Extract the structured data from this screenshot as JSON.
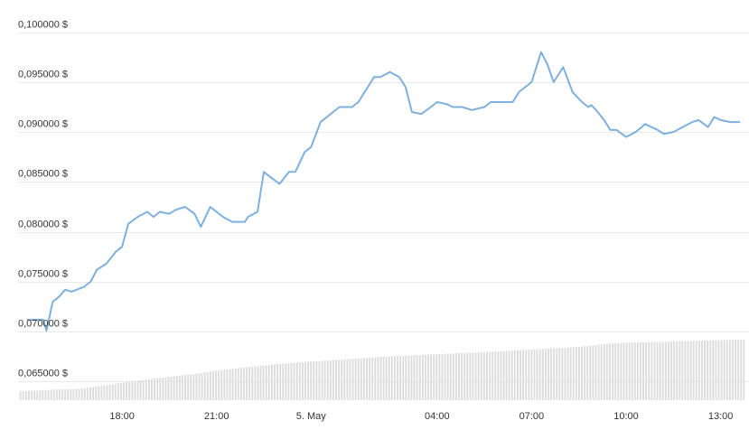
{
  "chart_data": {
    "type": "line",
    "y_ticks": [
      {
        "value": 0.1,
        "label": "0,100000 $"
      },
      {
        "value": 0.095,
        "label": "0,095000 $"
      },
      {
        "value": 0.09,
        "label": "0,090000 $"
      },
      {
        "value": 0.085,
        "label": "0,085000 $"
      },
      {
        "value": 0.08,
        "label": "0,080000 $"
      },
      {
        "value": 0.075,
        "label": "0,075000 $"
      },
      {
        "value": 0.07,
        "label": "0,070000 $"
      },
      {
        "value": 0.065,
        "label": "0,065000 $"
      }
    ],
    "ylim": [
      0.0625,
      0.1025
    ],
    "xlim": [
      14.7,
      37.9
    ],
    "x_ticks": [
      {
        "value": 18,
        "label": "18:00"
      },
      {
        "value": 21,
        "label": "21:00"
      },
      {
        "value": 24,
        "label": "5. May"
      },
      {
        "value": 28,
        "label": "04:00"
      },
      {
        "value": 31,
        "label": "07:00"
      },
      {
        "value": 34,
        "label": "10:00"
      },
      {
        "value": 37,
        "label": "13:00"
      }
    ],
    "grid": true,
    "colors": {
      "line": "#7eb0dd",
      "volume": "#dcdcdc",
      "grid": "#e9e9e9",
      "text": "#333333"
    },
    "series": [
      {
        "x": [
          15.0,
          15.5,
          15.6,
          15.8,
          16.0,
          16.2,
          16.4,
          16.8,
          17.0,
          17.2,
          17.5,
          17.8,
          18.0,
          18.2,
          18.5,
          18.8,
          19.0,
          19.2,
          19.5,
          19.7,
          20.0,
          20.3,
          20.5,
          20.8,
          21.0,
          21.2,
          21.5,
          21.9,
          22.0,
          22.3,
          22.5,
          22.7,
          23.0,
          23.3,
          23.5,
          23.8,
          24.0,
          24.3,
          24.7,
          24.9,
          25.3,
          25.5,
          25.8,
          26.0,
          26.2,
          26.5,
          26.8,
          27.0,
          27.2,
          27.5,
          27.8,
          28.0,
          28.3,
          28.5,
          28.8,
          29.1,
          29.5,
          29.7,
          30.0,
          30.4,
          30.6,
          31.0,
          31.3,
          31.5,
          31.7,
          32.0,
          32.3,
          32.6,
          32.8,
          32.9,
          33.1,
          33.3,
          33.5,
          33.7,
          34.0,
          34.3,
          34.5,
          34.6,
          35.0,
          35.2,
          35.5,
          35.8,
          36.1,
          36.3,
          36.6,
          36.8,
          37.0,
          37.3,
          37.6
        ],
        "y": [
          0.0712,
          0.0712,
          0.0701,
          0.073,
          0.0735,
          0.0742,
          0.074,
          0.0745,
          0.075,
          0.0762,
          0.0768,
          0.078,
          0.0785,
          0.0808,
          0.0815,
          0.082,
          0.0815,
          0.082,
          0.0818,
          0.0822,
          0.0825,
          0.0818,
          0.0805,
          0.0825,
          0.082,
          0.0815,
          0.081,
          0.081,
          0.0815,
          0.082,
          0.086,
          0.0855,
          0.0848,
          0.086,
          0.086,
          0.088,
          0.0885,
          0.091,
          0.092,
          0.0925,
          0.0925,
          0.093,
          0.0945,
          0.0955,
          0.0955,
          0.096,
          0.0955,
          0.0945,
          0.092,
          0.0918,
          0.0925,
          0.093,
          0.0928,
          0.0925,
          0.0925,
          0.0922,
          0.0925,
          0.093,
          0.093,
          0.093,
          0.094,
          0.095,
          0.098,
          0.0968,
          0.095,
          0.0965,
          0.094,
          0.093,
          0.0925,
          0.0927,
          0.092,
          0.0912,
          0.0902,
          0.0902,
          0.0895,
          0.09,
          0.0905,
          0.0908,
          0.0902,
          0.0898,
          0.09,
          0.0905,
          0.091,
          0.0912,
          0.0905,
          0.0915,
          0.0912,
          0.091,
          0.091
        ]
      }
    ],
    "volume": {
      "x_start": 14.75,
      "x_end": 37.8,
      "bar_count": 260,
      "level_points": [
        [
          14.75,
          0.12
        ],
        [
          16.8,
          0.16
        ],
        [
          18.6,
          0.27
        ],
        [
          20.6,
          0.37
        ],
        [
          21.0,
          0.4
        ],
        [
          23.0,
          0.49
        ],
        [
          24.7,
          0.54
        ],
        [
          26.4,
          0.59
        ],
        [
          28.0,
          0.62
        ],
        [
          30.0,
          0.66
        ],
        [
          32.5,
          0.72
        ],
        [
          33.6,
          0.77
        ],
        [
          37.8,
          0.82
        ]
      ]
    }
  }
}
